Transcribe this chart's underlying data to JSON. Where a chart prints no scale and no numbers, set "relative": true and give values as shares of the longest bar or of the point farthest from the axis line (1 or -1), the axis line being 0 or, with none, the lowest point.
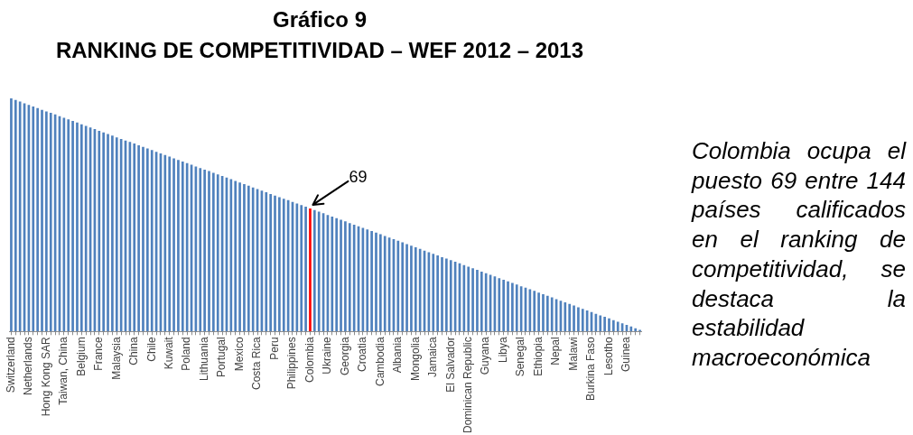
{
  "chart_data": {
    "type": "bar",
    "title": "Gráfico 9",
    "subtitle": "RANKING DE COMPETITIVIDAD – WEF 2012 – 2013",
    "categories": [
      "Switzerland",
      null,
      null,
      null,
      "Netherlands",
      null,
      null,
      null,
      "Hong Kong SAR",
      null,
      null,
      null,
      "Taiwan, China",
      null,
      null,
      null,
      "Belgium",
      null,
      null,
      null,
      "France",
      null,
      null,
      null,
      "Malaysia",
      null,
      null,
      null,
      "China",
      null,
      null,
      null,
      "Chile",
      null,
      null,
      null,
      "Kuwait",
      null,
      null,
      null,
      "Poland",
      null,
      null,
      null,
      "Lithuania",
      null,
      null,
      null,
      "Portugal",
      null,
      null,
      null,
      "Mexico",
      null,
      null,
      null,
      "Costa Rica",
      null,
      null,
      null,
      "Peru",
      null,
      null,
      null,
      "Philippines",
      null,
      null,
      null,
      "Colombia",
      null,
      null,
      null,
      "Ukraine",
      null,
      null,
      null,
      "Georgia",
      null,
      null,
      null,
      "Croatia",
      null,
      null,
      null,
      "Cambodia",
      null,
      null,
      null,
      "Albania",
      null,
      null,
      null,
      "Mongolia",
      null,
      null,
      null,
      "Jamaica",
      null,
      null,
      null,
      "El Salvador",
      null,
      null,
      null,
      "Dominican Republic",
      null,
      null,
      null,
      "Guyana",
      null,
      null,
      null,
      "Libya",
      null,
      null,
      null,
      "Senegal",
      null,
      null,
      null,
      "Ethiopia",
      null,
      null,
      null,
      "Nepal",
      null,
      null,
      null,
      "Malawi",
      null,
      null,
      null,
      "Burkina Faso",
      null,
      null,
      null,
      "Lesotho",
      null,
      null,
      null,
      "Guinea",
      null,
      null,
      null
    ],
    "values": [
      1,
      0.993,
      0.986,
      0.979,
      0.972,
      0.965,
      0.958,
      0.951,
      0.944,
      0.938,
      0.931,
      0.924,
      0.917,
      0.91,
      0.903,
      0.896,
      0.889,
      0.882,
      0.875,
      0.868,
      0.861,
      0.854,
      0.847,
      0.84,
      0.833,
      0.826,
      0.819,
      0.813,
      0.806,
      0.799,
      0.792,
      0.785,
      0.778,
      0.771,
      0.764,
      0.757,
      0.75,
      0.743,
      0.736,
      0.729,
      0.722,
      0.715,
      0.708,
      0.701,
      0.694,
      0.688,
      0.681,
      0.674,
      0.667,
      0.66,
      0.653,
      0.646,
      0.639,
      0.632,
      0.625,
      0.618,
      0.611,
      0.604,
      0.597,
      0.59,
      0.583,
      0.576,
      0.569,
      0.563,
      0.556,
      0.549,
      0.542,
      0.535,
      0.528,
      0.521,
      0.514,
      0.507,
      0.5,
      0.493,
      0.486,
      0.479,
      0.472,
      0.465,
      0.458,
      0.451,
      0.444,
      0.438,
      0.431,
      0.424,
      0.417,
      0.41,
      0.403,
      0.396,
      0.389,
      0.382,
      0.375,
      0.368,
      0.361,
      0.354,
      0.347,
      0.34,
      0.333,
      0.326,
      0.319,
      0.313,
      0.306,
      0.299,
      0.292,
      0.285,
      0.278,
      0.271,
      0.264,
      0.257,
      0.25,
      0.243,
      0.236,
      0.229,
      0.222,
      0.215,
      0.208,
      0.201,
      0.194,
      0.188,
      0.181,
      0.174,
      0.167,
      0.16,
      0.153,
      0.146,
      0.139,
      0.132,
      0.125,
      0.118,
      0.111,
      0.104,
      0.097,
      0.09,
      0.083,
      0.076,
      0.069,
      0.063,
      0.056,
      0.049,
      0.042,
      0.035,
      0.028,
      0.021,
      0.014,
      0.007
    ],
    "colors": [
      "#4f81bd",
      "#4f81bd",
      "#4f81bd",
      "#4f81bd",
      "#4f81bd",
      "#4f81bd",
      "#4f81bd",
      "#4f81bd",
      "#4f81bd",
      "#4f81bd",
      "#4f81bd",
      "#4f81bd",
      "#4f81bd",
      "#4f81bd",
      "#4f81bd",
      "#4f81bd",
      "#4f81bd",
      "#4f81bd",
      "#4f81bd",
      "#4f81bd",
      "#4f81bd",
      "#4f81bd",
      "#4f81bd",
      "#4f81bd",
      "#4f81bd",
      "#4f81bd",
      "#4f81bd",
      "#4f81bd",
      "#4f81bd",
      "#4f81bd",
      "#4f81bd",
      "#4f81bd",
      "#4f81bd",
      "#4f81bd",
      "#4f81bd",
      "#4f81bd",
      "#4f81bd",
      "#4f81bd",
      "#4f81bd",
      "#4f81bd",
      "#4f81bd",
      "#4f81bd",
      "#4f81bd",
      "#4f81bd",
      "#4f81bd",
      "#4f81bd",
      "#4f81bd",
      "#4f81bd",
      "#4f81bd",
      "#4f81bd",
      "#4f81bd",
      "#4f81bd",
      "#4f81bd",
      "#4f81bd",
      "#4f81bd",
      "#4f81bd",
      "#4f81bd",
      "#4f81bd",
      "#4f81bd",
      "#4f81bd",
      "#4f81bd",
      "#4f81bd",
      "#4f81bd",
      "#4f81bd",
      "#4f81bd",
      "#4f81bd",
      "#4f81bd",
      "#4f81bd",
      "#ff0000",
      "#4f81bd",
      "#4f81bd",
      "#4f81bd",
      "#4f81bd",
      "#4f81bd",
      "#4f81bd",
      "#4f81bd",
      "#4f81bd",
      "#4f81bd",
      "#4f81bd",
      "#4f81bd",
      "#4f81bd",
      "#4f81bd",
      "#4f81bd",
      "#4f81bd",
      "#4f81bd",
      "#4f81bd",
      "#4f81bd",
      "#4f81bd",
      "#4f81bd",
      "#4f81bd",
      "#4f81bd",
      "#4f81bd",
      "#4f81bd",
      "#4f81bd",
      "#4f81bd",
      "#4f81bd",
      "#4f81bd",
      "#4f81bd",
      "#4f81bd",
      "#4f81bd",
      "#4f81bd",
      "#4f81bd",
      "#4f81bd",
      "#4f81bd",
      "#4f81bd",
      "#4f81bd",
      "#4f81bd",
      "#4f81bd",
      "#4f81bd",
      "#4f81bd",
      "#4f81bd",
      "#4f81bd",
      "#4f81bd",
      "#4f81bd",
      "#4f81bd",
      "#4f81bd",
      "#4f81bd",
      "#4f81bd",
      "#4f81bd",
      "#4f81bd",
      "#4f81bd",
      "#4f81bd",
      "#4f81bd",
      "#4f81bd",
      "#4f81bd",
      "#4f81bd",
      "#4f81bd",
      "#4f81bd",
      "#4f81bd",
      "#4f81bd",
      "#4f81bd",
      "#4f81bd",
      "#4f81bd",
      "#4f81bd",
      "#4f81bd",
      "#4f81bd",
      "#4f81bd",
      "#4f81bd",
      "#4f81bd",
      "#4f81bd",
      "#4f81bd",
      "#4f81bd",
      "#4f81bd",
      "#4f81bd"
    ],
    "relative": true,
    "annotations": [
      {
        "text": "69",
        "x": "Colombia",
        "y": 0.528
      },
      "Colombia ocupa el puesto 69 entre 144 países calificados en el ranking de competitividad, se destaca la estabilidad macroeconómica"
    ]
  }
}
